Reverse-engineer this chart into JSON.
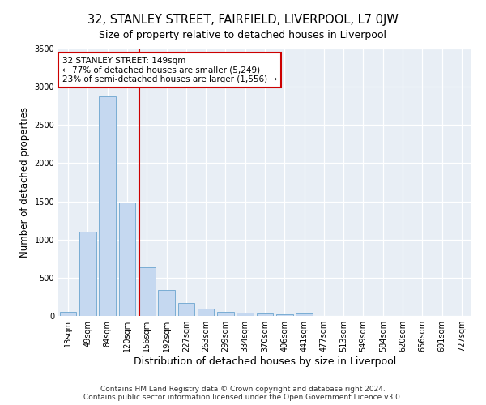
{
  "title": "32, STANLEY STREET, FAIRFIELD, LIVERPOOL, L7 0JW",
  "subtitle": "Size of property relative to detached houses in Liverpool",
  "xlabel": "Distribution of detached houses by size in Liverpool",
  "ylabel": "Number of detached properties",
  "categories": [
    "13sqm",
    "49sqm",
    "84sqm",
    "120sqm",
    "156sqm",
    "192sqm",
    "227sqm",
    "263sqm",
    "299sqm",
    "334sqm",
    "370sqm",
    "406sqm",
    "441sqm",
    "477sqm",
    "513sqm",
    "549sqm",
    "584sqm",
    "620sqm",
    "656sqm",
    "691sqm",
    "727sqm"
  ],
  "values": [
    50,
    1100,
    2870,
    1480,
    640,
    340,
    175,
    95,
    55,
    45,
    30,
    20,
    30,
    5,
    5,
    0,
    0,
    0,
    0,
    0,
    0
  ],
  "bar_color": "#c5d8f0",
  "bar_edge_color": "#7aadd4",
  "vline_x_index": 3.6,
  "vline_color": "#cc0000",
  "annotation_text": "32 STANLEY STREET: 149sqm\n← 77% of detached houses are smaller (5,249)\n23% of semi-detached houses are larger (1,556) →",
  "annotation_box_color": "#ffffff",
  "annotation_box_edge_color": "#cc0000",
  "ylim": [
    0,
    3500
  ],
  "yticks": [
    0,
    500,
    1000,
    1500,
    2000,
    2500,
    3000,
    3500
  ],
  "footer_line1": "Contains HM Land Registry data © Crown copyright and database right 2024.",
  "footer_line2": "Contains public sector information licensed under the Open Government Licence v3.0.",
  "fig_background_color": "#ffffff",
  "plot_bg_color": "#e8eef5",
  "grid_color": "#ffffff",
  "title_fontsize": 10.5,
  "subtitle_fontsize": 9,
  "xlabel_fontsize": 9,
  "ylabel_fontsize": 8.5,
  "tick_fontsize": 7,
  "annotation_fontsize": 7.5,
  "footer_fontsize": 6.5
}
